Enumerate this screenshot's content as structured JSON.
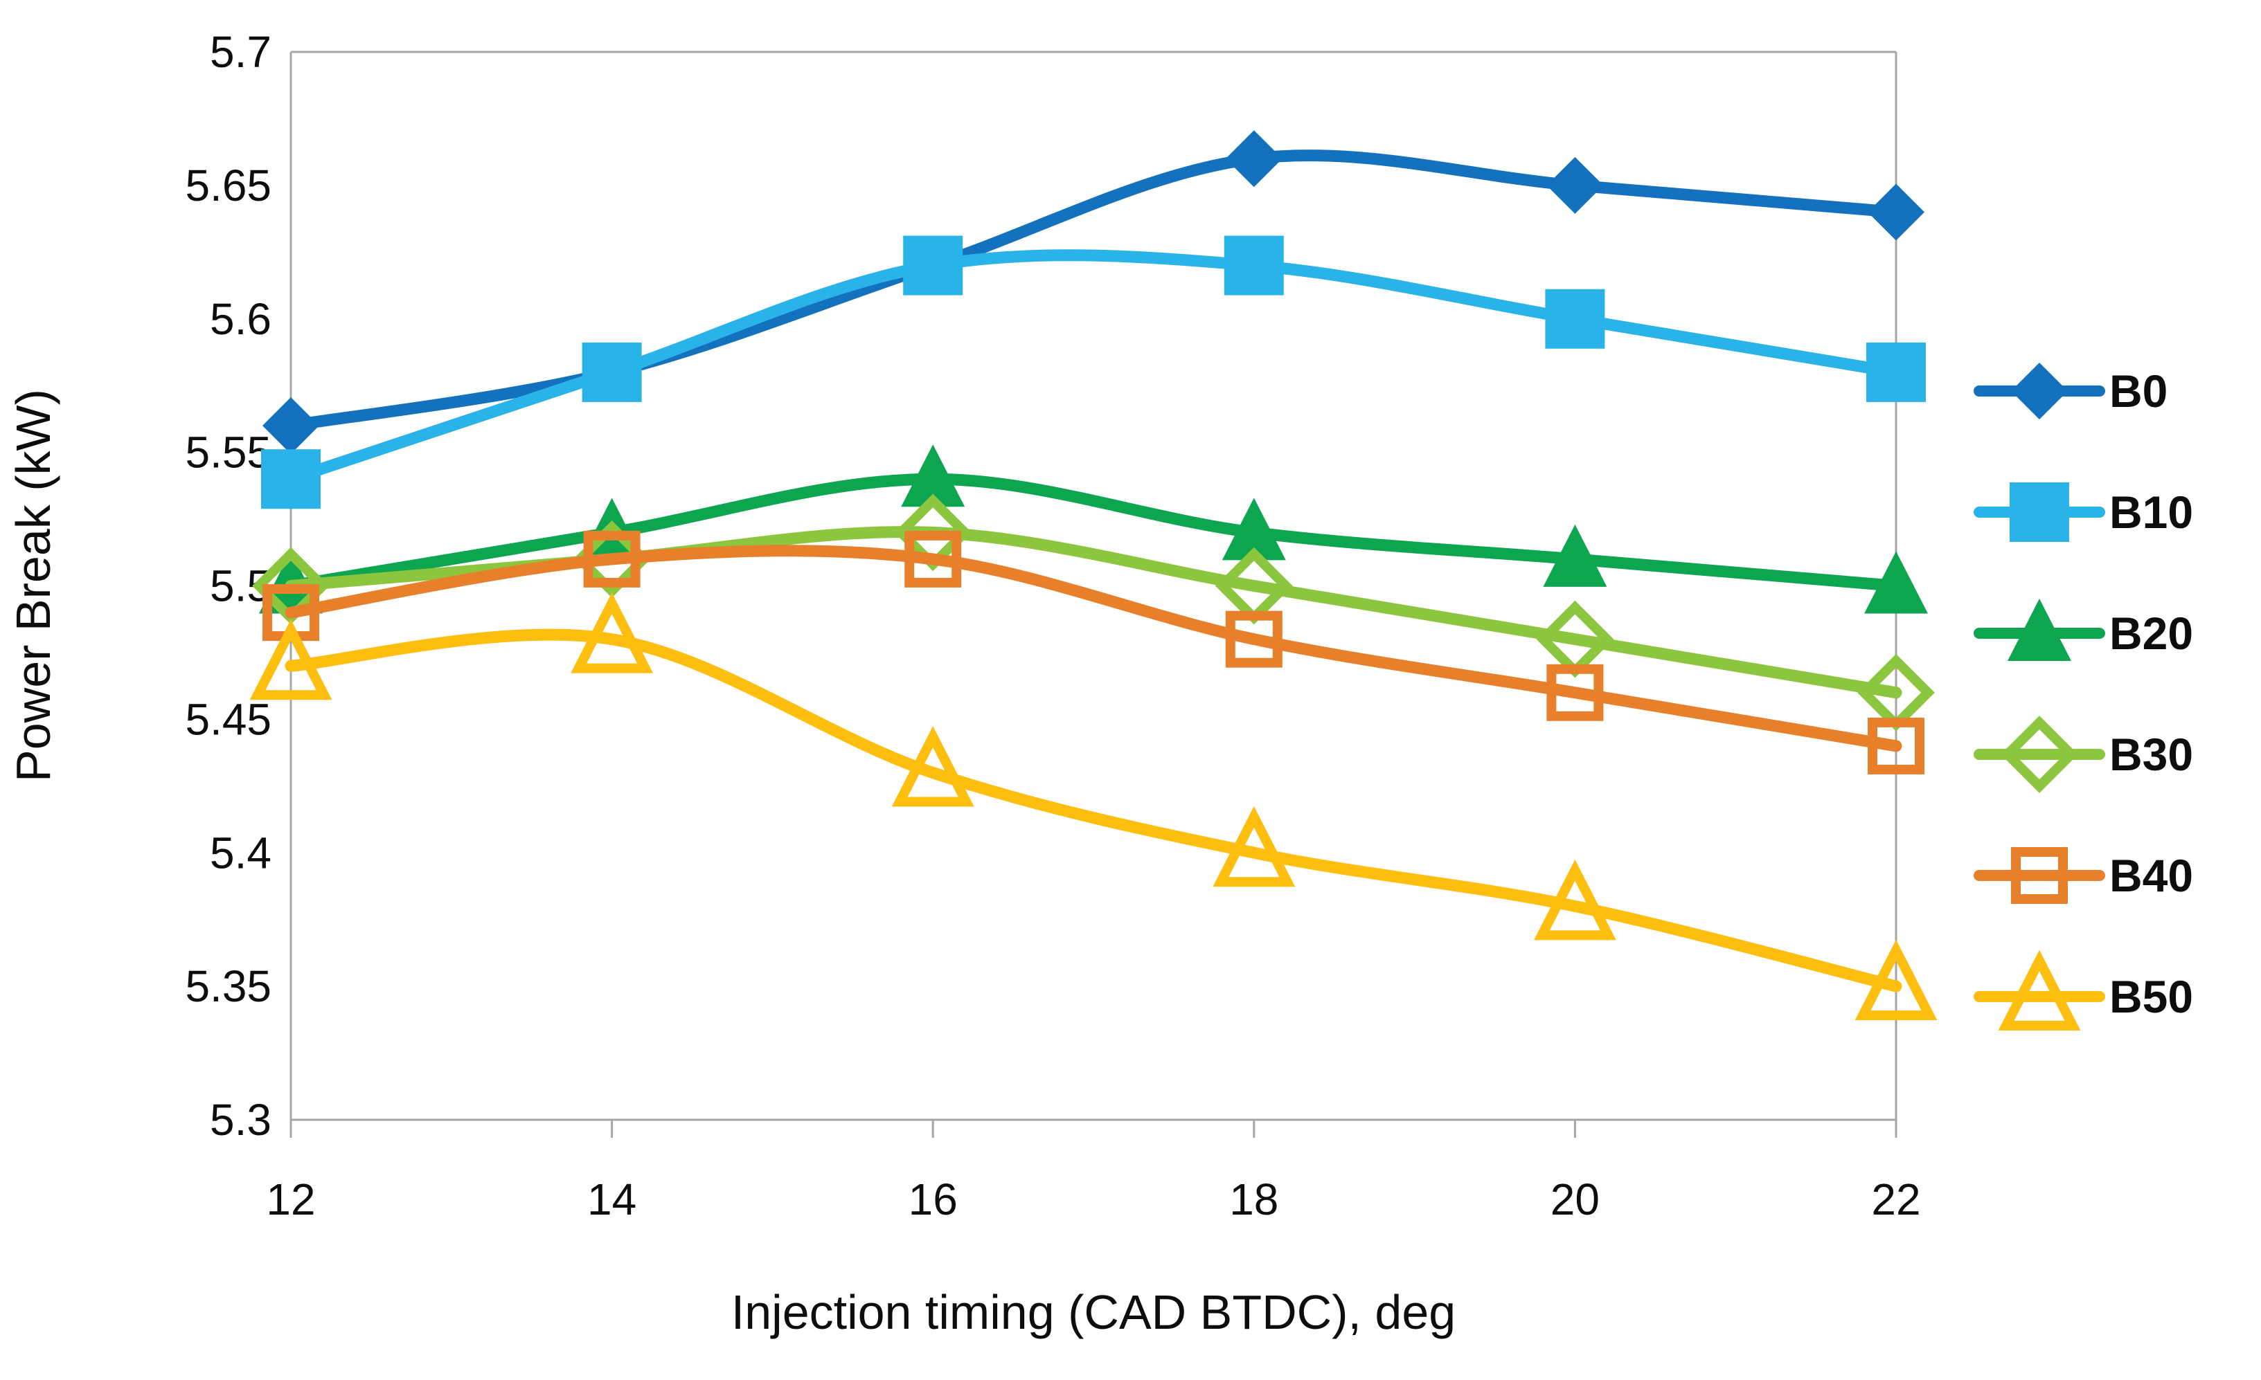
{
  "chart_data": {
    "type": "line",
    "title": "",
    "xlabel": "Injection timing (CAD BTDC), deg",
    "ylabel": "Power Break (kW)",
    "x": [
      12,
      14,
      16,
      18,
      20,
      22
    ],
    "x_tick_labels": [
      "12",
      "14",
      "16",
      "18",
      "20",
      "22"
    ],
    "y_ticks": [
      {
        "value": 5.3,
        "label": "5.3"
      },
      {
        "value": 5.35,
        "label": "5.35"
      },
      {
        "value": 5.4,
        "label": "5.4"
      },
      {
        "value": 5.45,
        "label": "5.45"
      },
      {
        "value": 5.5,
        "label": "5.5"
      },
      {
        "value": 5.55,
        "label": "5.55"
      },
      {
        "value": 5.6,
        "label": "5.6"
      },
      {
        "value": 5.65,
        "label": "5.65"
      },
      {
        "value": 5.7,
        "label": "5.7"
      }
    ],
    "xlim": [
      12,
      22
    ],
    "ylim": [
      5.3,
      5.7
    ],
    "grid": false,
    "smoothed_lines": true,
    "legend_position": "right",
    "axis_color": "#A6A6A6",
    "text_color": "#0d0d0d",
    "background_color": "#ffffff",
    "series": [
      {
        "name": "B0",
        "color": "#1371BD",
        "marker": "diamond-filled",
        "values": [
          5.56,
          5.58,
          5.62,
          5.66,
          5.65,
          5.64
        ]
      },
      {
        "name": "B10",
        "color": "#29B3E9",
        "marker": "square-filled",
        "values": [
          5.54,
          5.58,
          5.62,
          5.62,
          5.6,
          5.58
        ]
      },
      {
        "name": "B20",
        "color": "#0EA551",
        "marker": "triangle-filled",
        "values": [
          5.5,
          5.52,
          5.54,
          5.52,
          5.51,
          5.5
        ]
      },
      {
        "name": "B30",
        "color": "#8CC63E",
        "marker": "diamond-open",
        "values": [
          5.5,
          5.51,
          5.52,
          5.5,
          5.48,
          5.46
        ]
      },
      {
        "name": "B40",
        "color": "#E8802B",
        "marker": "square-open",
        "values": [
          5.49,
          5.51,
          5.51,
          5.48,
          5.46,
          5.44
        ]
      },
      {
        "name": "B50",
        "color": "#FEBE10",
        "marker": "triangle-open",
        "values": [
          5.47,
          5.48,
          5.43,
          5.4,
          5.38,
          5.35
        ]
      }
    ]
  }
}
